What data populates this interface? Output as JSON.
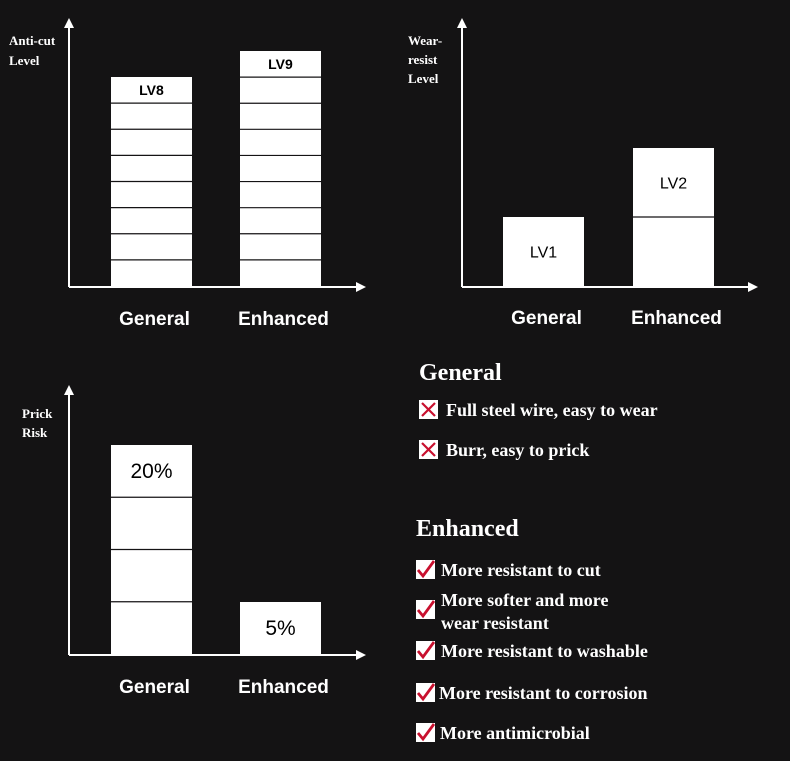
{
  "chart_data": [
    {
      "type": "bar",
      "ylabel": "Anti-cut Level",
      "categories": [
        "General",
        "Enhanced"
      ],
      "values": [
        8,
        9
      ],
      "data_labels": [
        "LV8",
        "LV9"
      ],
      "ylim": [
        0,
        10
      ]
    },
    {
      "type": "bar",
      "ylabel": "Wear-resist Level",
      "categories": [
        "General",
        "Enhanced"
      ],
      "values": [
        1,
        2
      ],
      "data_labels": [
        "LV1",
        "LV2"
      ],
      "ylim": [
        0,
        3.5
      ]
    },
    {
      "type": "bar",
      "ylabel": "Prick Risk",
      "categories": [
        "General",
        "Enhanced"
      ],
      "values": [
        20,
        5
      ],
      "data_labels": [
        "20%",
        "5%"
      ],
      "ylim": [
        0,
        25
      ]
    }
  ],
  "legend": {
    "general": {
      "title": "General",
      "items": [
        {
          "icon": "cross-icon",
          "text": "Full steel wire, easy to wear"
        },
        {
          "icon": "cross-icon",
          "text": "Burr, easy to prick"
        }
      ]
    },
    "enhanced": {
      "title": "Enhanced",
      "items": [
        {
          "icon": "check-icon",
          "text": "More resistant to cut"
        },
        {
          "icon": "check-icon",
          "text": "More softer and more",
          "text2": "wear resistant"
        },
        {
          "icon": "check-icon",
          "text": "More resistant to washable"
        },
        {
          "icon": "check-icon",
          "text": "More resistant to corrosion"
        },
        {
          "icon": "check-icon",
          "text": "More antimicrobial"
        }
      ]
    }
  },
  "colors": {
    "background": "#141314",
    "bar_fill": "#ffffff",
    "bar_stroke": "#141314",
    "axis": "#ffffff",
    "cross": "#c8102e",
    "check": "#c8102e"
  }
}
